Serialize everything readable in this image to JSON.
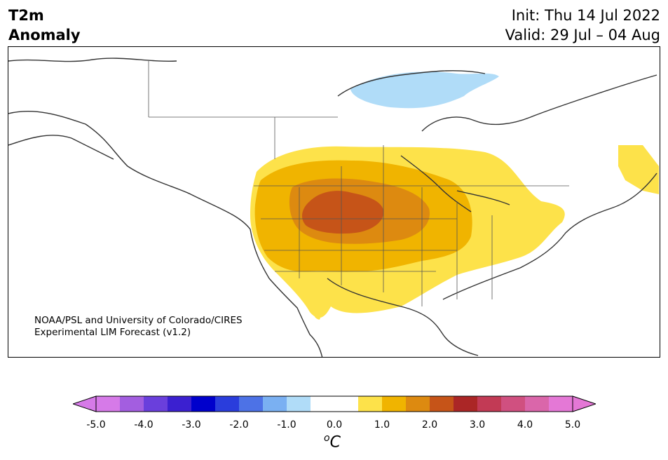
{
  "header": {
    "variable": "T2m",
    "subtitle": "Anomaly",
    "init_text": "Init: Thu 14 Jul 2022",
    "valid_text": "Valid: 29 Jul – 04 Aug"
  },
  "credit": {
    "line1": "NOAA/PSL and University of Colorado/CIRES",
    "line2": "Experimental LIM Forecast (v1.2)"
  },
  "colorbar": {
    "ticks": [
      "-5.0",
      "-4.0",
      "-3.0",
      "-2.0",
      "-1.0",
      "0.0",
      "1.0",
      "2.0",
      "3.0",
      "4.0",
      "5.0"
    ],
    "unit_superscript": "o",
    "unit_letter": "C",
    "colors": [
      "#d67ae8",
      "#a35ee0",
      "#6a3fdc",
      "#3b20d0",
      "#0000cc",
      "#2a3ddc",
      "#4d72e6",
      "#7ab0f2",
      "#b0dcf8",
      "#ffffff",
      "#ffffff",
      "#fde24a",
      "#f0b400",
      "#dd8a10",
      "#c65418",
      "#ab2626",
      "#c23a55",
      "#d05080",
      "#da66aa",
      "#e478d6"
    ],
    "extend_low": "#d67ae8",
    "extend_high": "#e478d6"
  },
  "map": {
    "region": "North America",
    "anomaly_colors": {
      "cool_1": "#b0dcf8",
      "warm_1": "#fde24a",
      "warm_2": "#f0b400",
      "warm_3": "#dd8a10",
      "warm_4": "#c65418"
    }
  }
}
